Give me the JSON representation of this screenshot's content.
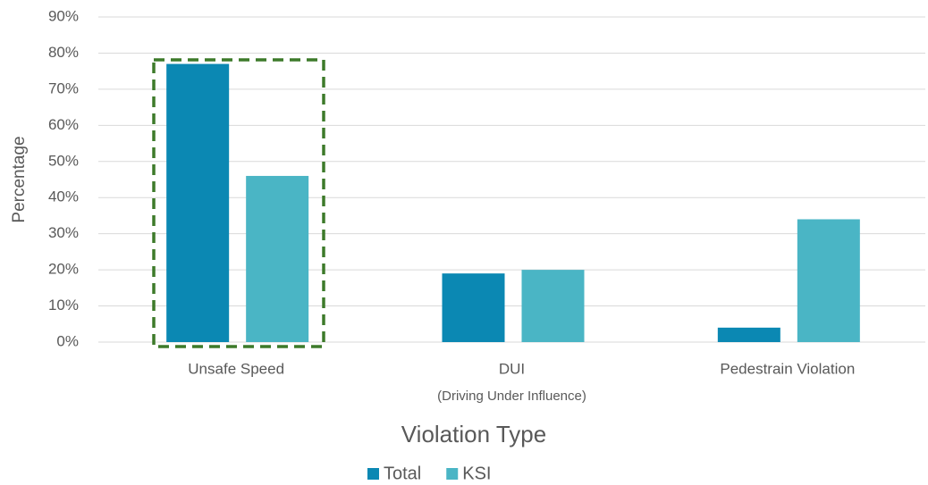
{
  "chart_data": {
    "type": "bar",
    "x_label": "Violation Type",
    "y_label": "Percentage",
    "categories": [
      "Unsafe Speed",
      "DUI",
      "Pedestrain Violation"
    ],
    "annotations": [
      "(Driving Under Influence)"
    ],
    "series": [
      {
        "name": "Total",
        "color": "#0b88b3",
        "values": [
          77,
          19,
          4
        ]
      },
      {
        "name": "KSI",
        "color": "#4ab5c5",
        "values": [
          46,
          20,
          34
        ]
      }
    ],
    "ylim": [
      0,
      90
    ],
    "yticks": [
      {
        "value": 0,
        "label": "0%"
      },
      {
        "value": 10,
        "label": "10%"
      },
      {
        "value": 20,
        "label": "20%"
      },
      {
        "value": 30,
        "label": "30%"
      },
      {
        "value": 40,
        "label": "40%"
      },
      {
        "value": 50,
        "label": "50%"
      },
      {
        "value": 60,
        "label": "60%"
      },
      {
        "value": 70,
        "label": "70%"
      },
      {
        "value": 80,
        "label": "80%"
      },
      {
        "value": 90,
        "label": "90%"
      }
    ],
    "grid": true,
    "legend": "bottom"
  }
}
